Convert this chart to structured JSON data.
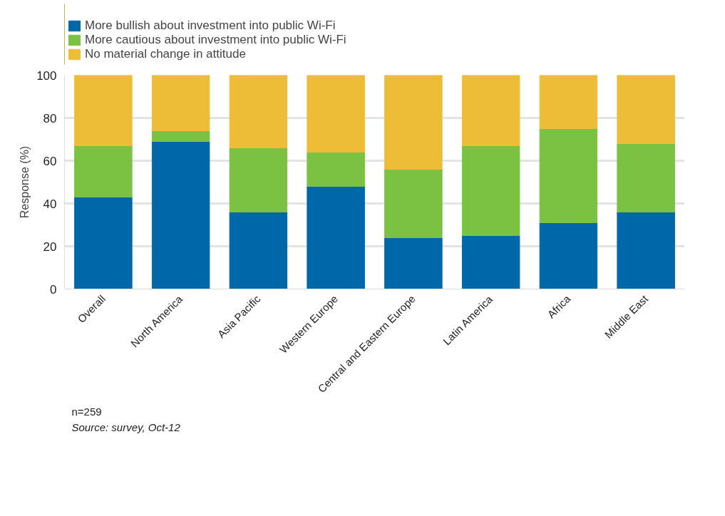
{
  "chart_data": {
    "type": "bar",
    "stacked": true,
    "ylabel": "Response (%)",
    "categories": [
      "Overall",
      "North America",
      "Asia Pacific",
      "Western Europe",
      "Central and Eastern Europe",
      "Latin America",
      "Africa",
      "Middle East"
    ],
    "series": [
      {
        "name": "More bullish about investment into public Wi-Fi",
        "color": "#0068a8",
        "values": [
          43,
          69,
          36,
          48,
          24,
          25,
          31,
          36
        ]
      },
      {
        "name": "More cautious about investment into public Wi-Fi",
        "color": "#7cc242",
        "values": [
          24,
          5,
          30,
          16,
          32,
          42,
          44,
          32
        ]
      },
      {
        "name": "No material change in attitude",
        "color": "#eebd38",
        "values": [
          33,
          26,
          34,
          36,
          44,
          33,
          25,
          32
        ]
      }
    ],
    "ylim": [
      0,
      100
    ],
    "yticks": [
      0,
      20,
      40,
      60,
      80,
      100
    ],
    "grid": "y",
    "legend": "top left",
    "annotations": [
      "n=259",
      "Source: survey, Oct-12"
    ]
  }
}
